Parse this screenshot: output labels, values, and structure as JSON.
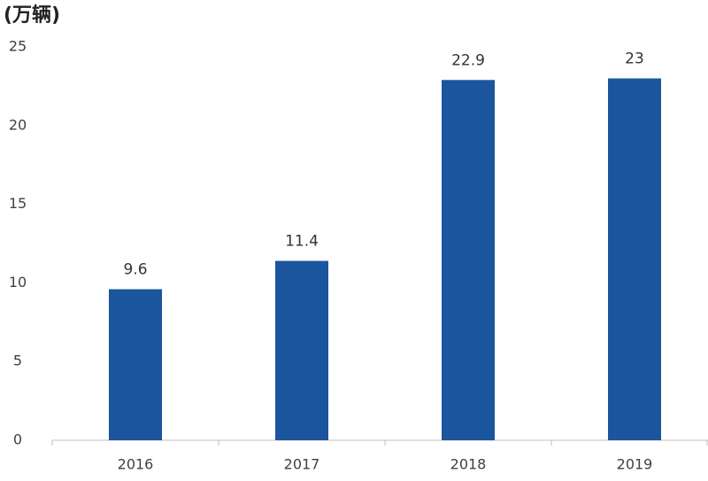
{
  "chart_data": {
    "type": "bar",
    "y_label": "(万辆)",
    "categories": [
      "2016",
      "2017",
      "2018",
      "2019"
    ],
    "values": [
      9.6,
      11.4,
      22.9,
      23
    ],
    "color": "#1a559e",
    "ylim": [
      0,
      25
    ],
    "yticks": [
      0,
      5,
      10,
      15,
      20,
      25
    ],
    "grid": false
  }
}
